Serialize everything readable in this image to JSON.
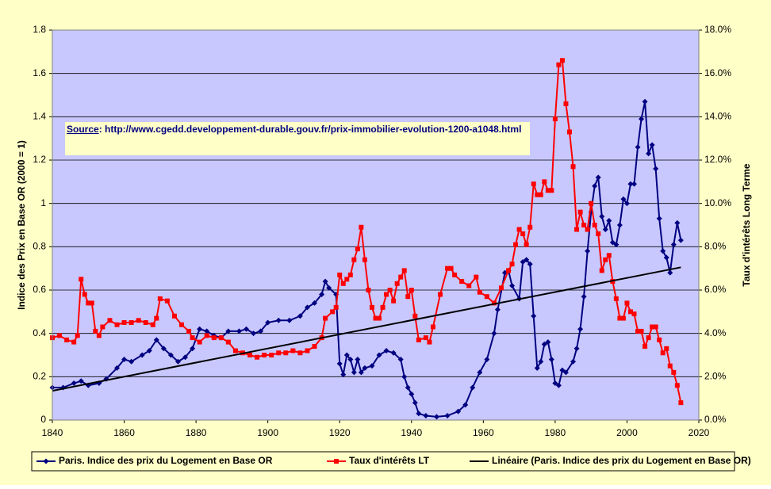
{
  "chart_data": {
    "type": "line",
    "ylabel": "Indice des Prix en Base OR (2000 = 1)",
    "y2label": "Taux d'intérêts Long Terme",
    "annotation": {
      "source": "Source",
      "text": ": http://www.cgedd.developpement-durable.gouv.fr/prix-immobilier-evolution-1200-a1048.html"
    },
    "xlim": [
      1840,
      2020
    ],
    "xticks": [
      1840,
      1860,
      1880,
      1900,
      1920,
      1940,
      1960,
      1980,
      2000,
      2020
    ],
    "ylim": [
      0,
      1.8
    ],
    "yticks": [
      0,
      0.2,
      0.4,
      0.6,
      0.8,
      1,
      1.2,
      1.4,
      1.6,
      1.8
    ],
    "y2lim": [
      0,
      18
    ],
    "y2ticks": [
      {
        "value": 0,
        "label": "0.0%"
      },
      {
        "value": 2,
        "label": "2.0%"
      },
      {
        "value": 4,
        "label": "4.0%"
      },
      {
        "value": 6,
        "label": "6.0%"
      },
      {
        "value": 8,
        "label": "8.0%"
      },
      {
        "value": 10,
        "label": "10.0%"
      },
      {
        "value": 12,
        "label": "12.0%"
      },
      {
        "value": 14,
        "label": "14.0%"
      },
      {
        "value": 16,
        "label": "16.0%"
      },
      {
        "value": 18,
        "label": "18.0%"
      }
    ],
    "grid": true,
    "legend": "bottom",
    "series": [
      {
        "name": "Paris. Indice des prix du Logement en Base OR",
        "color": "#000080",
        "marker": "diamond",
        "x": [
          1840,
          1843,
          1846,
          1848,
          1850,
          1853,
          1855,
          1858,
          1860,
          1862,
          1865,
          1867,
          1869,
          1871,
          1873,
          1875,
          1877,
          1879,
          1881,
          1883,
          1885,
          1887,
          1889,
          1892,
          1894,
          1896,
          1898,
          1900,
          1903,
          1906,
          1909,
          1911,
          1913,
          1915,
          1916,
          1917,
          1919,
          1920,
          1921,
          1922,
          1923,
          1924,
          1925,
          1926,
          1927,
          1929,
          1931,
          1933,
          1935,
          1937,
          1938,
          1939,
          1940,
          1941,
          1942,
          1944,
          1947,
          1950,
          1953,
          1955,
          1957,
          1959,
          1961,
          1963,
          1964,
          1966,
          1967,
          1968,
          1970,
          1971,
          1972,
          1973,
          1974,
          1975,
          1976,
          1977,
          1978,
          1979,
          1980,
          1981,
          1982,
          1983,
          1985,
          1986,
          1987,
          1988,
          1989,
          1990,
          1991,
          1992,
          1993,
          1994,
          1995,
          1996,
          1997,
          1998,
          1999,
          2000,
          2001,
          2002,
          2003,
          2004,
          2005,
          2006,
          2007,
          2008,
          2009,
          2010,
          2011,
          2012,
          2013,
          2014,
          2015
        ],
        "values": [
          0.15,
          0.15,
          0.17,
          0.18,
          0.16,
          0.17,
          0.19,
          0.24,
          0.28,
          0.27,
          0.3,
          0.32,
          0.37,
          0.33,
          0.3,
          0.27,
          0.29,
          0.33,
          0.42,
          0.41,
          0.39,
          0.38,
          0.41,
          0.41,
          0.42,
          0.4,
          0.41,
          0.45,
          0.46,
          0.46,
          0.48,
          0.52,
          0.54,
          0.58,
          0.64,
          0.61,
          0.58,
          0.26,
          0.21,
          0.3,
          0.28,
          0.22,
          0.28,
          0.22,
          0.24,
          0.25,
          0.3,
          0.32,
          0.31,
          0.28,
          0.2,
          0.15,
          0.12,
          0.08,
          0.03,
          0.02,
          0.015,
          0.02,
          0.04,
          0.07,
          0.15,
          0.22,
          0.28,
          0.4,
          0.51,
          0.68,
          0.69,
          0.62,
          0.56,
          0.73,
          0.74,
          0.72,
          0.48,
          0.24,
          0.27,
          0.35,
          0.36,
          0.28,
          0.17,
          0.16,
          0.23,
          0.22,
          0.27,
          0.33,
          0.42,
          0.57,
          0.78,
          0.96,
          1.08,
          1.12,
          0.94,
          0.88,
          0.92,
          0.82,
          0.81,
          0.9,
          1.02,
          1.0,
          1.09,
          1.09,
          1.26,
          1.39,
          1.47,
          1.23,
          1.27,
          1.16,
          0.93,
          0.78,
          0.75,
          0.68,
          0.81,
          0.91,
          0.83
        ]
      },
      {
        "name": "Taux d'intérêts LT",
        "color": "#ff0000",
        "marker": "square",
        "axis": "y2",
        "x": [
          1840,
          1842,
          1844,
          1846,
          1847,
          1848,
          1849,
          1850,
          1851,
          1852,
          1853,
          1854,
          1856,
          1858,
          1860,
          1862,
          1864,
          1866,
          1868,
          1869,
          1870,
          1872,
          1874,
          1876,
          1878,
          1879,
          1881,
          1883,
          1885,
          1887,
          1889,
          1891,
          1893,
          1895,
          1897,
          1899,
          1901,
          1903,
          1905,
          1907,
          1909,
          1911,
          1913,
          1915,
          1916,
          1918,
          1919,
          1920,
          1921,
          1922,
          1923,
          1924,
          1925,
          1926,
          1927,
          1928,
          1929,
          1930,
          1931,
          1932,
          1933,
          1934,
          1935,
          1936,
          1937,
          1938,
          1939,
          1940,
          1941,
          1942,
          1944,
          1945,
          1946,
          1948,
          1950,
          1951,
          1952,
          1954,
          1956,
          1958,
          1959,
          1961,
          1963,
          1965,
          1967,
          1968,
          1969,
          1970,
          1971,
          1972,
          1973,
          1974,
          1975,
          1976,
          1977,
          1978,
          1979,
          1980,
          1981,
          1982,
          1983,
          1984,
          1985,
          1986,
          1987,
          1988,
          1989,
          1990,
          1991,
          1992,
          1993,
          1994,
          1995,
          1996,
          1997,
          1998,
          1999,
          2000,
          2001,
          2002,
          2003,
          2004,
          2005,
          2006,
          2007,
          2008,
          2009,
          2010,
          2011,
          2012,
          2013,
          2014,
          2015
        ],
        "values": [
          3.8,
          3.9,
          3.7,
          3.6,
          3.9,
          6.5,
          5.8,
          5.4,
          5.4,
          4.1,
          3.9,
          4.3,
          4.6,
          4.4,
          4.5,
          4.5,
          4.6,
          4.5,
          4.4,
          4.7,
          5.6,
          5.5,
          4.8,
          4.4,
          4.1,
          3.8,
          3.6,
          3.9,
          3.8,
          3.8,
          3.6,
          3.2,
          3.1,
          3.0,
          2.9,
          3.0,
          3.0,
          3.1,
          3.1,
          3.2,
          3.1,
          3.2,
          3.4,
          3.8,
          4.7,
          5.0,
          5.2,
          6.7,
          6.3,
          6.5,
          6.7,
          7.4,
          7.9,
          8.9,
          7.4,
          6.0,
          5.2,
          4.7,
          4.7,
          5.2,
          5.8,
          6.0,
          5.5,
          6.3,
          6.6,
          6.9,
          5.7,
          6.0,
          4.8,
          3.7,
          3.8,
          3.6,
          4.3,
          5.8,
          7.0,
          7.0,
          6.7,
          6.4,
          6.2,
          6.6,
          5.9,
          5.7,
          5.4,
          6.1,
          6.9,
          7.2,
          8.1,
          8.8,
          8.6,
          8.1,
          8.9,
          10.9,
          10.4,
          10.4,
          11.0,
          10.6,
          10.6,
          13.9,
          16.4,
          16.6,
          14.6,
          13.3,
          11.7,
          8.8,
          9.6,
          9.0,
          8.8,
          10.0,
          9.0,
          8.6,
          6.9,
          7.4,
          7.6,
          6.4,
          5.6,
          4.7,
          4.7,
          5.4,
          5.0,
          4.9,
          4.1,
          4.1,
          3.4,
          3.8,
          4.3,
          4.3,
          3.7,
          3.1,
          3.3,
          2.5,
          2.2,
          1.6,
          0.8
        ]
      },
      {
        "name": "Linéaire (Paris. Indice des prix du Logement en Base OR)",
        "color": "#000000",
        "marker": "none",
        "x": [
          1840,
          2015
        ],
        "values": [
          0.135,
          0.705
        ]
      }
    ]
  }
}
